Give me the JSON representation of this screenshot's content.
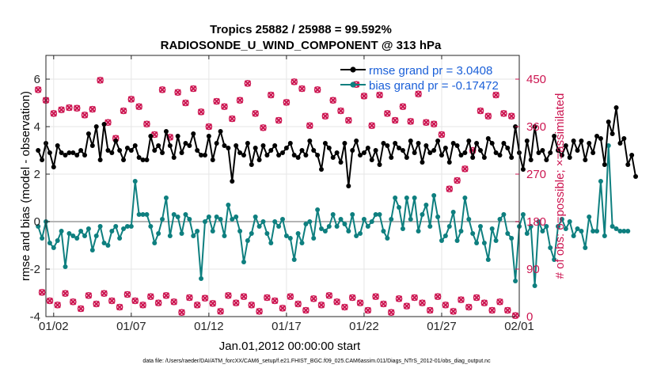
{
  "chart_data": {
    "type": "line",
    "title": "Tropics 25882 / 25988 = 99.592%",
    "subtitle": "RADIOSONDE_U_WIND_COMPONENT @ 313 hPa",
    "xlabel": "Jan.01,2012 00:00:00 start",
    "ylabel": "rmse and bias (model - observation)",
    "ylabel_right": "# of obs: o=possible; ×=assimilated",
    "footer": "data file: /Users/raeder/DAI/ATM_forcXX/CAM6_setup/f.e21.FHIST_BGC.f09_025.CAM6assim.011/Diags_NTrS_2012-01/obs_diag_output.nc",
    "xlim": [
      0.5,
      31.0
    ],
    "ylim": [
      -4,
      7
    ],
    "ylim_right": [
      0,
      495
    ],
    "x_ticks": [
      1,
      6,
      11,
      16,
      21,
      26,
      31
    ],
    "x_tick_labels": [
      "01/02",
      "01/07",
      "01/12",
      "01/17",
      "01/22",
      "01/27",
      "02/01"
    ],
    "y_ticks": [
      -4,
      -2,
      0,
      2,
      4,
      6
    ],
    "y_tick_labels": [
      "-4",
      "-2",
      "0",
      "2",
      "4",
      "6"
    ],
    "y_right_ticks": [
      0,
      90,
      180,
      270,
      360,
      450
    ],
    "y_right_tick_labels": [
      "0",
      "90",
      "180",
      "270",
      "360",
      "450"
    ],
    "zero_line": 0,
    "colors": {
      "rmse": "#000000",
      "bias": "#0e7f7f",
      "obs": "#cc1450",
      "zero": "#b4b4b4",
      "legend_text": "#1a5fd8"
    },
    "legend": [
      {
        "name": "rmse",
        "label": "rmse grand pr = 3.0408"
      },
      {
        "name": "bias",
        "label": "bias grand pr = -0.17472"
      }
    ],
    "x_start": 0.0,
    "x_step": 0.25,
    "rmse": [
      3.0,
      2.6,
      3.3,
      2.9,
      2.3,
      3.2,
      2.9,
      2.8,
      2.9,
      2.9,
      2.8,
      3.0,
      2.8,
      3.7,
      3.2,
      4.0,
      2.6,
      4.1,
      3.0,
      2.9,
      3.4,
      3.0,
      2.6,
      3.1,
      3.0,
      3.2,
      2.7,
      2.6,
      2.6,
      3.6,
      3.0,
      3.2,
      2.9,
      3.8,
      3.2,
      2.7,
      3.6,
      2.9,
      3.3,
      3.2,
      3.7,
      3.0,
      2.8,
      2.8,
      3.6,
      2.6,
      3.3,
      3.8,
      3.2,
      3.1,
      1.7,
      3.2,
      2.9,
      2.8,
      3.3,
      2.4,
      3.1,
      2.6,
      3.2,
      2.8,
      3.0,
      3.2,
      2.8,
      2.9,
      3.1,
      3.3,
      2.8,
      2.7,
      3.0,
      2.8,
      3.4,
      3.0,
      2.8,
      2.2,
      3.3,
      3.1,
      2.7,
      2.9,
      2.5,
      3.3,
      1.5,
      3.0,
      3.4,
      2.8,
      2.9,
      3.1,
      2.6,
      3.0,
      2.4,
      3.3,
      3.2,
      2.7,
      3.3,
      3.1,
      3.0,
      2.7,
      3.4,
      2.9,
      3.3,
      2.5,
      3.2,
      2.9,
      3.0,
      3.4,
      2.8,
      3.1,
      2.5,
      3.3,
      3.2,
      2.8,
      2.9,
      3.4,
      2.7,
      3.3,
      3.0,
      2.7,
      3.5,
      3.3,
      2.9,
      2.8,
      3.3,
      3.1,
      2.7,
      4.0,
      2.9,
      2.2,
      3.4,
      2.6,
      4.0,
      2.9,
      3.0,
      2.6,
      2.9,
      3.6,
      3.0,
      2.8,
      3.2,
      2.7,
      3.4,
      3.0,
      3.4,
      2.6,
      3.3,
      2.9,
      3.6,
      3.5,
      2.4,
      4.2,
      3.7,
      4.8,
      3.3,
      3.5,
      2.4,
      2.8,
      1.9
    ],
    "bias": [
      -0.2,
      -0.7,
      0.0,
      -0.9,
      -1.1,
      -0.8,
      -0.4,
      -1.9,
      -0.5,
      -0.6,
      -0.7,
      -0.4,
      -0.6,
      -0.3,
      -1.2,
      -0.6,
      -0.2,
      -0.9,
      -1.0,
      -0.4,
      -0.2,
      -0.7,
      -0.3,
      -0.2,
      -0.2,
      1.7,
      0.3,
      0.3,
      0.3,
      -0.2,
      -0.9,
      -0.5,
      0.1,
      1.0,
      -0.6,
      0.3,
      0.2,
      -0.5,
      0.3,
      0.1,
      -0.6,
      -0.4,
      -2.4,
      0.0,
      0.2,
      -0.4,
      0.2,
      0.1,
      -0.6,
      0.7,
      0.1,
      0.2,
      -0.4,
      -1.7,
      -0.8,
      -0.5,
      0.2,
      -0.2,
      0.0,
      -0.5,
      -0.9,
      0.0,
      -0.2,
      0.1,
      -0.6,
      -0.7,
      -1.6,
      -0.5,
      -0.9,
      -0.1,
      0.0,
      -0.7,
      0.5,
      -0.3,
      -0.4,
      -0.2,
      0.3,
      -0.2,
      0.1,
      -0.1,
      -0.4,
      0.3,
      -0.6,
      -0.5,
      0.1,
      -0.2,
      0.0,
      0.3,
      0.3,
      -0.4,
      -0.7,
      0.1,
      1.0,
      0.6,
      -0.3,
      1.0,
      0.1,
      1.0,
      -0.4,
      0.3,
      0.7,
      -0.2,
      1.1,
      0.2,
      -0.8,
      -0.6,
      -0.2,
      0.4,
      -0.8,
      -0.4,
      1.0,
      0.1,
      -0.5,
      -0.9,
      -0.2,
      -0.9,
      -1.6,
      -0.3,
      -0.8,
      0.1,
      0.3,
      -0.5,
      -0.7,
      -2.5,
      -0.2,
      0.3,
      -0.5,
      -0.2,
      -2.7,
      0.0,
      -0.4,
      -0.2,
      -1.1,
      -1.6,
      -0.2,
      0.1,
      -0.3,
      0.0,
      -0.6,
      -0.3,
      -0.4,
      -1.1,
      0.2,
      -0.4,
      -0.4,
      1.7,
      -0.6,
      3.2,
      -0.2,
      -0.3,
      -0.4,
      -0.4,
      -0.4
    ],
    "obs": [
      {
        "x": 0.0,
        "n": 430
      },
      {
        "x": 0.5,
        "n": 410
      },
      {
        "x": 1.0,
        "n": 385
      },
      {
        "x": 1.5,
        "n": 392
      },
      {
        "x": 2.0,
        "n": 396
      },
      {
        "x": 2.5,
        "n": 395
      },
      {
        "x": 3.0,
        "n": 382
      },
      {
        "x": 3.5,
        "n": 393
      },
      {
        "x": 4.0,
        "n": 448
      },
      {
        "x": 4.5,
        "n": 368
      },
      {
        "x": 5.0,
        "n": 338
      },
      {
        "x": 5.5,
        "n": 390
      },
      {
        "x": 6.0,
        "n": 412
      },
      {
        "x": 6.5,
        "n": 398
      },
      {
        "x": 7.0,
        "n": 365
      },
      {
        "x": 7.5,
        "n": 345
      },
      {
        "x": 8.0,
        "n": 430
      },
      {
        "x": 8.5,
        "n": 340
      },
      {
        "x": 9.0,
        "n": 425
      },
      {
        "x": 9.5,
        "n": 405
      },
      {
        "x": 10.0,
        "n": 432
      },
      {
        "x": 10.5,
        "n": 388
      },
      {
        "x": 11.0,
        "n": 360
      },
      {
        "x": 11.5,
        "n": 408
      },
      {
        "x": 12.0,
        "n": 398
      },
      {
        "x": 12.5,
        "n": 375
      },
      {
        "x": 13.0,
        "n": 410
      },
      {
        "x": 13.5,
        "n": 442
      },
      {
        "x": 14.0,
        "n": 385
      },
      {
        "x": 14.5,
        "n": 358
      },
      {
        "x": 15.0,
        "n": 420
      },
      {
        "x": 15.5,
        "n": 372
      },
      {
        "x": 16.0,
        "n": 406
      },
      {
        "x": 16.5,
        "n": 445
      },
      {
        "x": 17.0,
        "n": 432
      },
      {
        "x": 17.5,
        "n": 362
      },
      {
        "x": 18.0,
        "n": 430
      },
      {
        "x": 18.5,
        "n": 380
      },
      {
        "x": 19.0,
        "n": 410
      },
      {
        "x": 19.5,
        "n": 390
      },
      {
        "x": 20.0,
        "n": 372
      },
      {
        "x": 20.5,
        "n": 440
      },
      {
        "x": 21.0,
        "n": 418
      },
      {
        "x": 21.5,
        "n": 362
      },
      {
        "x": 22.0,
        "n": 420
      },
      {
        "x": 22.5,
        "n": 385
      },
      {
        "x": 23.0,
        "n": 372
      },
      {
        "x": 23.5,
        "n": 398
      },
      {
        "x": 24.0,
        "n": 370
      },
      {
        "x": 24.5,
        "n": 422
      },
      {
        "x": 25.0,
        "n": 368
      },
      {
        "x": 25.5,
        "n": 365
      },
      {
        "x": 26.0,
        "n": 345
      },
      {
        "x": 26.5,
        "n": 242
      },
      {
        "x": 27.0,
        "n": 258
      },
      {
        "x": 27.5,
        "n": 280
      },
      {
        "x": 28.0,
        "n": 315
      },
      {
        "x": 28.5,
        "n": 390
      },
      {
        "x": 29.0,
        "n": 380
      },
      {
        "x": 29.5,
        "n": 420
      },
      {
        "x": 30.0,
        "n": 385
      },
      {
        "x": 30.5,
        "n": 380
      },
      {
        "x": 0.25,
        "n": 46
      },
      {
        "x": 0.75,
        "n": 30
      },
      {
        "x": 1.25,
        "n": 22
      },
      {
        "x": 1.75,
        "n": 44
      },
      {
        "x": 2.25,
        "n": 28
      },
      {
        "x": 2.75,
        "n": 15
      },
      {
        "x": 3.25,
        "n": 40
      },
      {
        "x": 3.75,
        "n": 24
      },
      {
        "x": 4.25,
        "n": 44
      },
      {
        "x": 4.75,
        "n": 30
      },
      {
        "x": 5.25,
        "n": 18
      },
      {
        "x": 5.75,
        "n": 42
      },
      {
        "x": 6.25,
        "n": 30
      },
      {
        "x": 6.75,
        "n": 22
      },
      {
        "x": 7.25,
        "n": 38
      },
      {
        "x": 7.75,
        "n": 26
      },
      {
        "x": 8.25,
        "n": 40
      },
      {
        "x": 8.75,
        "n": 28
      },
      {
        "x": 9.25,
        "n": 8
      },
      {
        "x": 9.75,
        "n": 36
      },
      {
        "x": 10.25,
        "n": 22
      },
      {
        "x": 10.75,
        "n": 35
      },
      {
        "x": 11.25,
        "n": 25
      },
      {
        "x": 11.75,
        "n": 10
      },
      {
        "x": 12.25,
        "n": 40
      },
      {
        "x": 12.75,
        "n": 26
      },
      {
        "x": 13.25,
        "n": 38
      },
      {
        "x": 13.75,
        "n": 22
      },
      {
        "x": 14.25,
        "n": 10
      },
      {
        "x": 14.75,
        "n": 36
      },
      {
        "x": 15.25,
        "n": 30
      },
      {
        "x": 15.75,
        "n": 16
      },
      {
        "x": 16.25,
        "n": 38
      },
      {
        "x": 16.75,
        "n": 24
      },
      {
        "x": 17.25,
        "n": 12
      },
      {
        "x": 17.75,
        "n": 34
      },
      {
        "x": 18.25,
        "n": 22
      },
      {
        "x": 18.75,
        "n": 40
      },
      {
        "x": 19.25,
        "n": 28
      },
      {
        "x": 19.75,
        "n": 18
      },
      {
        "x": 20.25,
        "n": 36
      },
      {
        "x": 20.75,
        "n": 26
      },
      {
        "x": 21.25,
        "n": 12
      },
      {
        "x": 21.75,
        "n": 38
      },
      {
        "x": 22.25,
        "n": 24
      },
      {
        "x": 22.75,
        "n": 8
      },
      {
        "x": 23.25,
        "n": 34
      },
      {
        "x": 23.75,
        "n": 20
      },
      {
        "x": 24.25,
        "n": 36
      },
      {
        "x": 24.75,
        "n": 26
      },
      {
        "x": 25.25,
        "n": 12
      },
      {
        "x": 25.75,
        "n": 38
      },
      {
        "x": 26.25,
        "n": 22
      },
      {
        "x": 26.75,
        "n": 10
      },
      {
        "x": 27.25,
        "n": 32
      },
      {
        "x": 27.75,
        "n": 18
      },
      {
        "x": 28.25,
        "n": 36
      },
      {
        "x": 28.75,
        "n": 26
      },
      {
        "x": 29.25,
        "n": 12
      },
      {
        "x": 29.75,
        "n": 28
      },
      {
        "x": 30.25,
        "n": 12
      },
      {
        "x": 30.75,
        "n": 2
      }
    ]
  }
}
